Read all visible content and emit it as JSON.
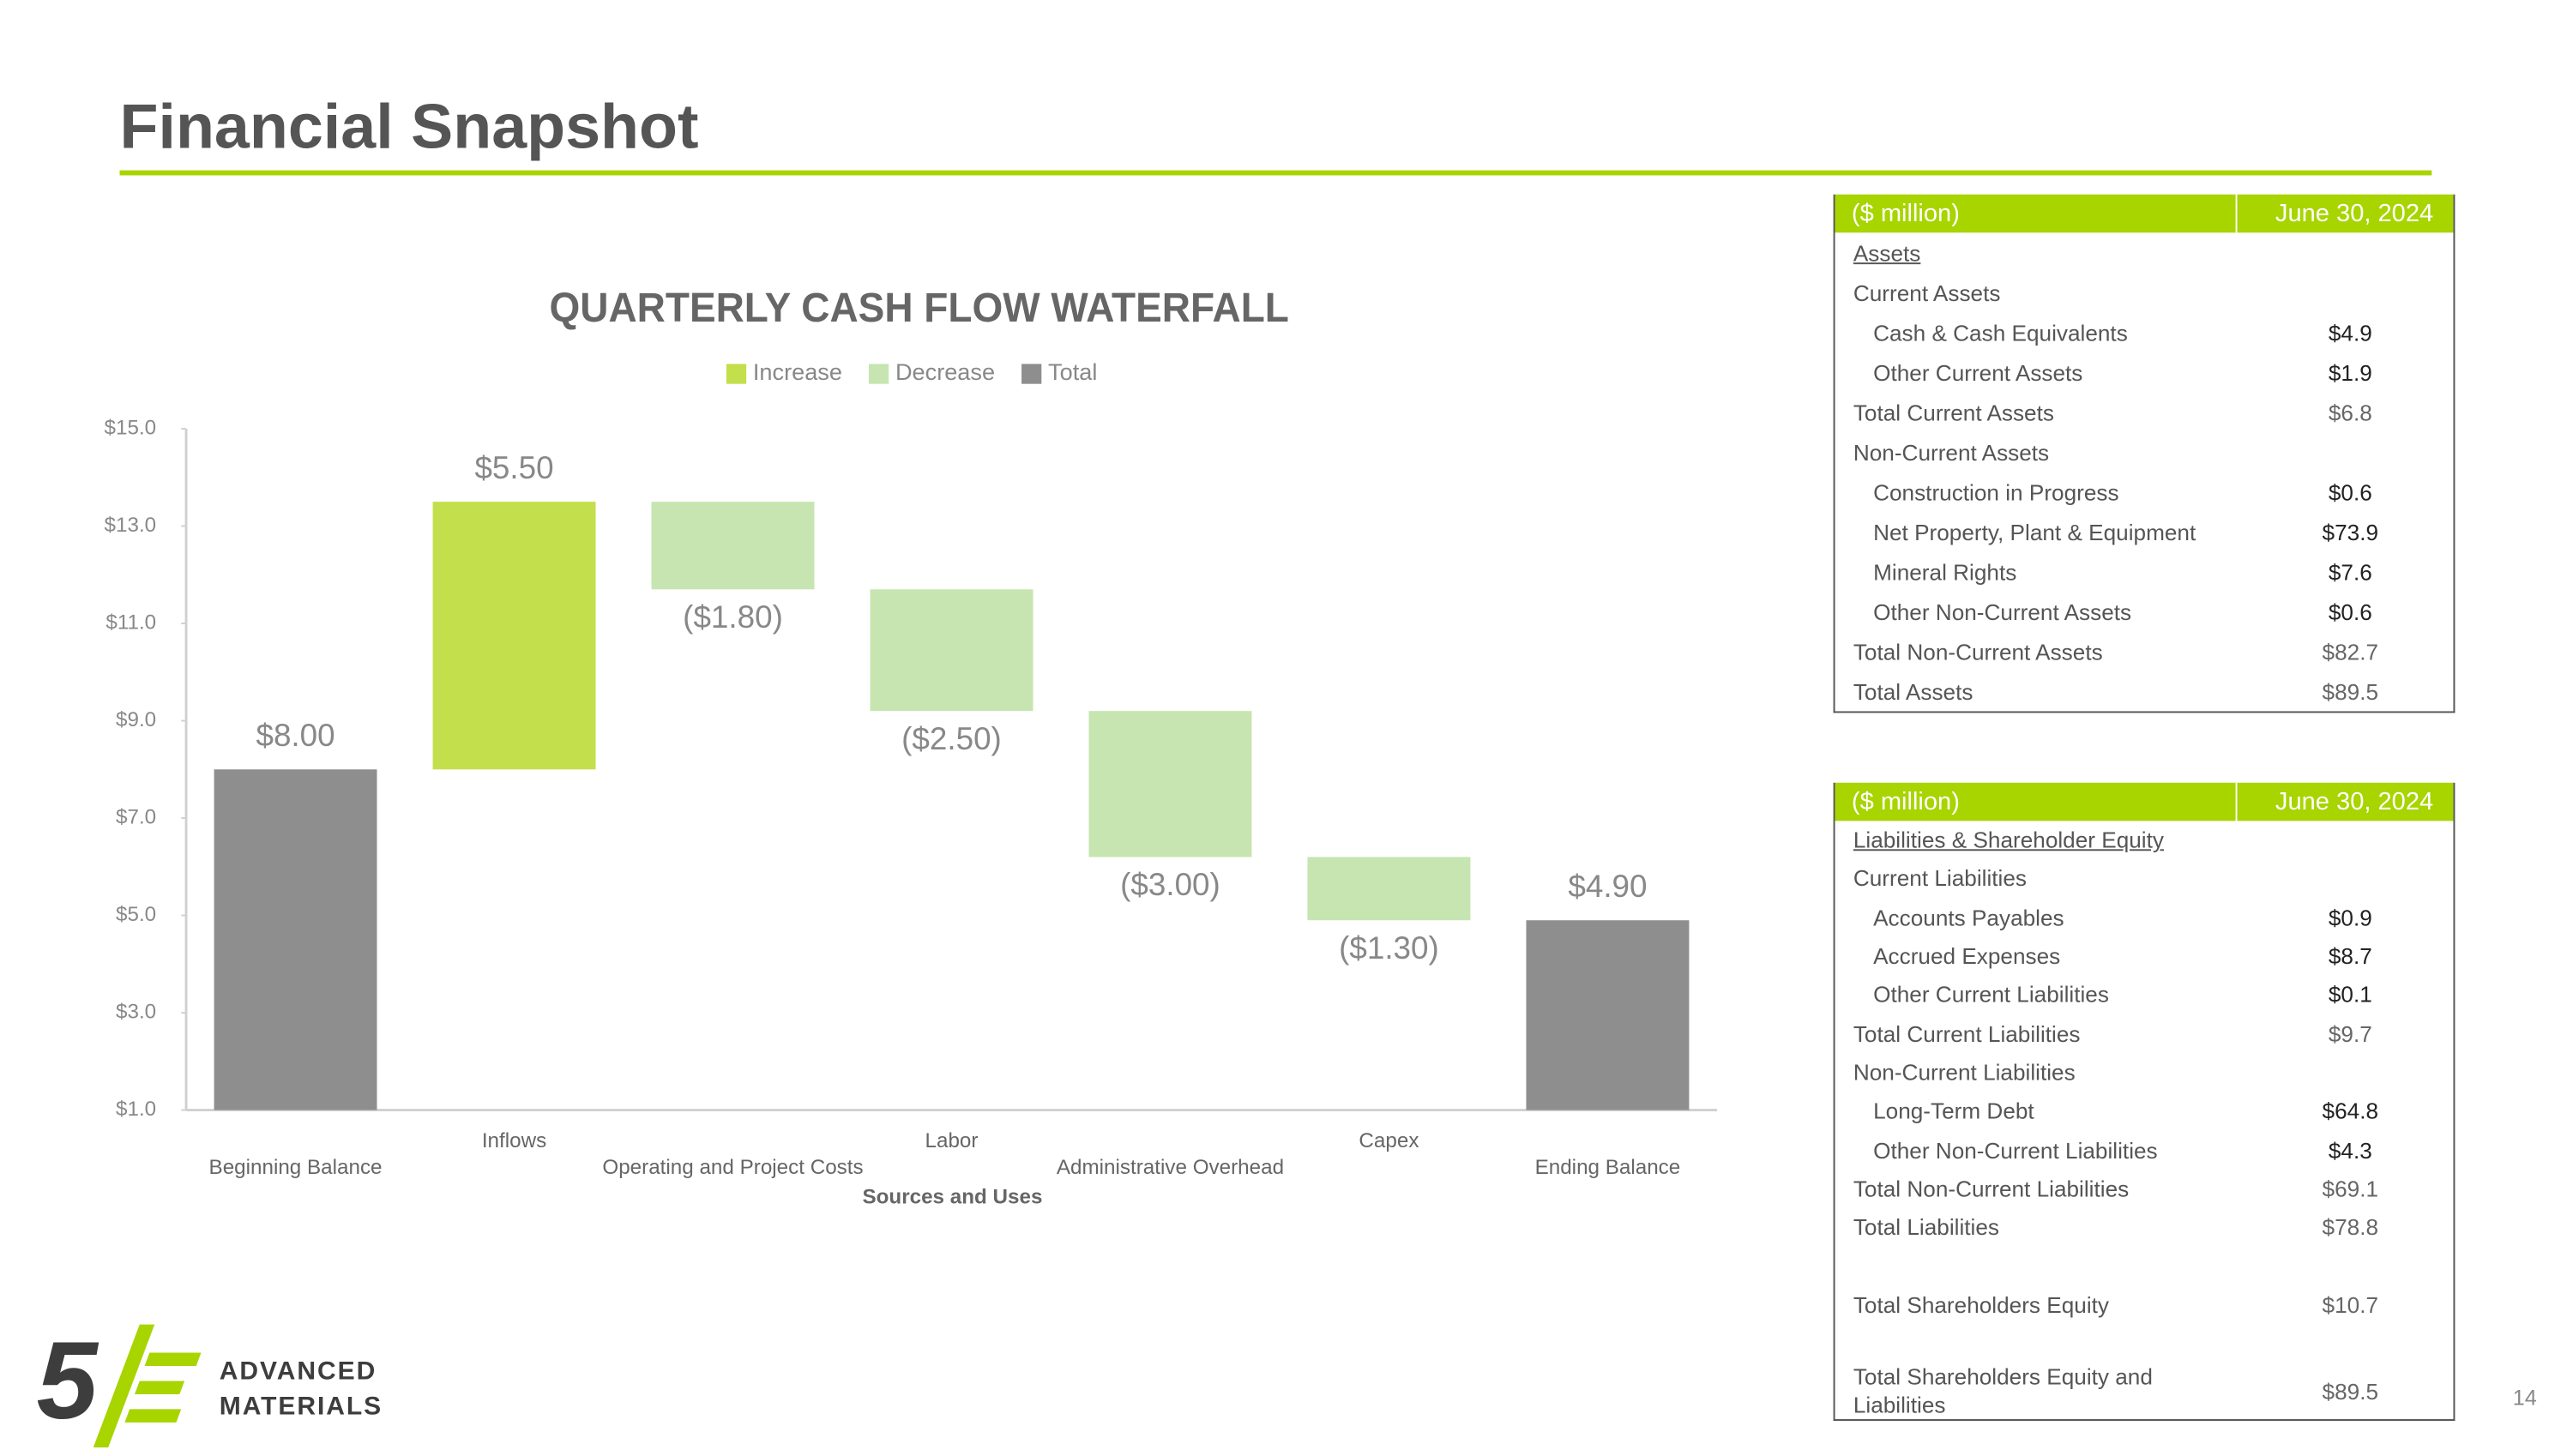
{
  "header": {
    "title": "Financial Snapshot"
  },
  "chart_data": {
    "type": "waterfall",
    "title": "QUARTERLY CASH FLOW WATERFALL",
    "x_label": "Sources and Uses",
    "categories": [
      "Beginning Balance",
      "Inflows",
      "Operating and Project Costs",
      "Labor",
      "Administrative Overhead",
      "Capex",
      "Ending Balance"
    ],
    "series": [
      {
        "name": "Increase",
        "color": "#c3df4c",
        "values": [
          null,
          5.5,
          null,
          null,
          null,
          null,
          null
        ],
        "value_labels": [
          null,
          "$5.50",
          null,
          null,
          null,
          null,
          null
        ]
      },
      {
        "name": "Decrease",
        "color": "#c6e5b0",
        "values": [
          null,
          null,
          -1.8,
          -2.5,
          -3.0,
          -1.3,
          null
        ],
        "value_labels": [
          null,
          null,
          "($1.80)",
          "($2.50)",
          "($3.00)",
          "($1.30)",
          null
        ]
      },
      {
        "name": "Total",
        "color": "#8e8e8e",
        "is_total": true,
        "values": [
          8.0,
          null,
          null,
          null,
          null,
          null,
          4.9
        ],
        "value_labels": [
          "$8.00",
          null,
          null,
          null,
          null,
          null,
          "$4.90"
        ]
      }
    ],
    "ylim": [
      1,
      15
    ],
    "yticks": [
      {
        "value": 1,
        "label": "$1.0"
      },
      {
        "value": 3,
        "label": "$3.0"
      },
      {
        "value": 5,
        "label": "$5.0"
      },
      {
        "value": 7,
        "label": "$7.0"
      },
      {
        "value": 9,
        "label": "$9.0"
      },
      {
        "value": 11,
        "label": "$11.0"
      },
      {
        "value": 13,
        "label": "$13.0"
      },
      {
        "value": 15,
        "label": "$15.0"
      }
    ],
    "grid": false,
    "legend": "top"
  },
  "assets_table": {
    "header": [
      "($ million)",
      "June 30, 2024"
    ],
    "rows": [
      [
        "Assets"
      ],
      [
        "Current Assets"
      ],
      [
        "Cash & Cash Equivalents",
        "$4.9"
      ],
      [
        "Other Current Assets",
        "$1.9"
      ],
      [
        "Total Current Assets",
        "$6.8"
      ],
      [
        "Non-Current Assets"
      ],
      [
        "Construction in Progress",
        "$0.6"
      ],
      [
        "Net Property, Plant & Equipment",
        "$73.9"
      ],
      [
        "Mineral Rights",
        "$7.6"
      ],
      [
        "Other Non-Current Assets",
        "$0.6"
      ],
      [
        "Total Non-Current Assets",
        "$82.7"
      ],
      [
        "Total Assets",
        "$89.5"
      ]
    ]
  },
  "liabilities_table": {
    "header": [
      "($ million)",
      "June 30, 2024"
    ],
    "rows": [
      [
        "Liabilities & Shareholder Equity"
      ],
      [
        "Current Liabilities"
      ],
      [
        "Accounts Payables",
        "$0.9"
      ],
      [
        "Accrued Expenses",
        "$8.7"
      ],
      [
        "Other Current Liabilities",
        "$0.1"
      ],
      [
        "Total Current Liabilities",
        "$9.7"
      ],
      [
        "Non-Current Liabilities"
      ],
      [
        "Long-Term Debt",
        "$64.8"
      ],
      [
        "Other Non-Current Liabilities",
        "$4.3"
      ],
      [
        "Total Non-Current Liabilities",
        "$69.1"
      ],
      [
        "Total Liabilities",
        "$78.8"
      ],
      [
        "Total Shareholders Equity",
        "$10.7"
      ],
      [
        "Total Shareholders Equity and Liabilities",
        "$89.5"
      ]
    ]
  },
  "logo": {
    "numeral": "5",
    "line1": "ADVANCED",
    "line2": "MATERIALS"
  },
  "page_number": "14"
}
